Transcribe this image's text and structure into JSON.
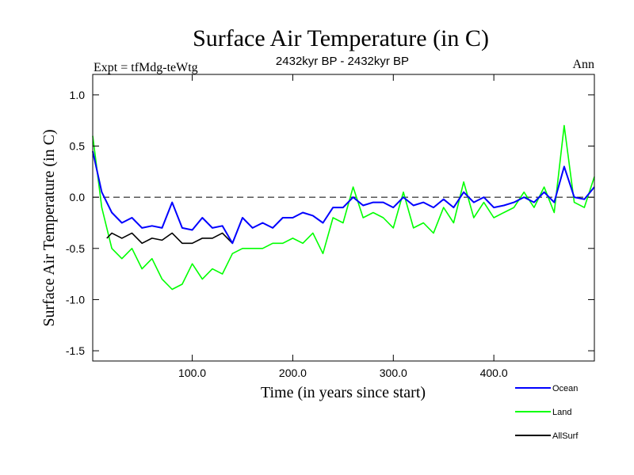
{
  "chart_data": {
    "type": "line",
    "title": "Surface Air Temperature (in C)",
    "subtitle": "2432kyr BP - 2432kyr BP",
    "left_annotation": "Expt = tfMdg-teWtg",
    "right_annotation": "Ann",
    "xlabel": "Time (in years since start)",
    "ylabel": "Surface Air Temperature (in C)",
    "xlim": [
      1,
      500
    ],
    "ylim": [
      -1.6,
      1.2
    ],
    "x_ticks": [
      100,
      200,
      300,
      400
    ],
    "x_tick_labels": [
      "100.0",
      "200.0",
      "300.0",
      "400.0"
    ],
    "y_ticks": [
      1.0,
      0.5,
      0.0,
      -0.5,
      -1.0,
      -1.5
    ],
    "y_tick_labels": [
      "1.0",
      "0.5",
      "0.0",
      "-0.5",
      "-1.0",
      "-1.5"
    ],
    "reference_line": 0.0,
    "legend_position": "bottom-right, outside plot",
    "series": [
      {
        "name": "Ocean",
        "color": "#0000ff",
        "x": [
          1,
          10,
          20,
          30,
          40,
          50,
          60,
          70,
          80,
          90,
          100,
          110,
          120,
          130,
          140,
          150,
          160,
          170,
          180,
          190,
          200,
          210,
          220,
          230,
          240,
          250,
          260,
          270,
          280,
          290,
          300,
          310,
          320,
          330,
          340,
          350,
          360,
          370,
          380,
          390,
          400,
          410,
          420,
          430,
          440,
          450,
          460,
          470,
          480,
          490,
          500
        ],
        "values": [
          0.45,
          0.05,
          -0.15,
          -0.25,
          -0.2,
          -0.3,
          -0.28,
          -0.3,
          -0.05,
          -0.3,
          -0.32,
          -0.2,
          -0.3,
          -0.28,
          -0.45,
          -0.2,
          -0.3,
          -0.25,
          -0.3,
          -0.2,
          -0.2,
          -0.15,
          -0.18,
          -0.25,
          -0.1,
          -0.1,
          0.0,
          -0.08,
          -0.05,
          -0.05,
          -0.1,
          0.0,
          -0.08,
          -0.05,
          -0.1,
          -0.02,
          -0.1,
          0.05,
          -0.05,
          0.0,
          -0.1,
          -0.08,
          -0.05,
          0.0,
          -0.05,
          0.05,
          -0.05,
          0.3,
          0.0,
          -0.02,
          0.1
        ]
      },
      {
        "name": "Land",
        "color": "#00ff00",
        "x": [
          1,
          10,
          20,
          30,
          40,
          50,
          60,
          70,
          80,
          90,
          100,
          110,
          120,
          130,
          140,
          150,
          160,
          170,
          180,
          190,
          200,
          210,
          220,
          230,
          240,
          250,
          260,
          270,
          280,
          290,
          300,
          310,
          320,
          330,
          340,
          350,
          360,
          370,
          380,
          390,
          400,
          410,
          420,
          430,
          440,
          450,
          460,
          470,
          480,
          490,
          500
        ],
        "values": [
          0.6,
          -0.1,
          -0.5,
          -0.6,
          -0.5,
          -0.7,
          -0.6,
          -0.8,
          -0.9,
          -0.85,
          -0.65,
          -0.8,
          -0.7,
          -0.75,
          -0.55,
          -0.5,
          -0.5,
          -0.5,
          -0.45,
          -0.45,
          -0.4,
          -0.45,
          -0.35,
          -0.55,
          -0.2,
          -0.25,
          0.1,
          -0.2,
          -0.15,
          -0.2,
          -0.3,
          0.05,
          -0.3,
          -0.25,
          -0.35,
          -0.1,
          -0.25,
          0.15,
          -0.2,
          -0.05,
          -0.2,
          -0.15,
          -0.1,
          0.05,
          -0.1,
          0.1,
          -0.15,
          0.7,
          -0.05,
          -0.1,
          0.2
        ]
      },
      {
        "name": "AllSurf",
        "color": "#000000",
        "x": [
          15,
          20,
          30,
          40,
          50,
          60,
          70,
          80,
          90,
          100,
          110,
          120,
          130,
          140
        ],
        "values": [
          -0.4,
          -0.35,
          -0.4,
          -0.35,
          -0.45,
          -0.4,
          -0.42,
          -0.35,
          -0.45,
          -0.45,
          -0.4,
          -0.4,
          -0.35,
          -0.45
        ]
      }
    ]
  }
}
